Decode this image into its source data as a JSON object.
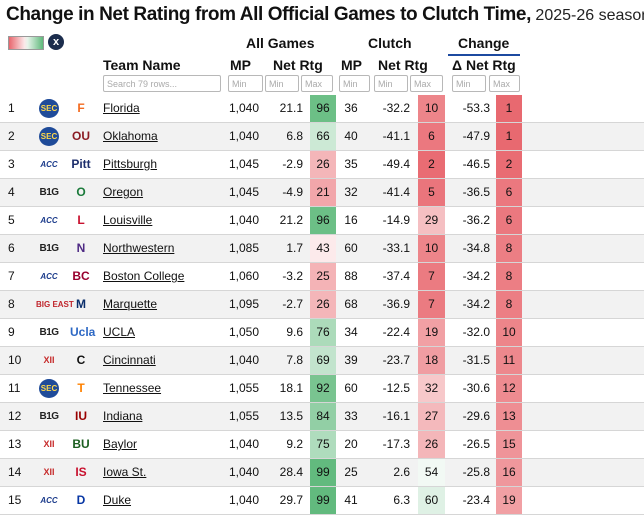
{
  "title": {
    "main": "Change in Net Rating from All Official Games to Clutch Time,",
    "sub": " 2025-26 season"
  },
  "colors": {
    "green_strong": "#5fb97b",
    "red_strong": "#e8666d",
    "header_underline": "#1c4aa0"
  },
  "headers": {
    "all_games": "All Games",
    "clutch": "Clutch",
    "change": "Change",
    "team_name": "Team Name",
    "mp": "MP",
    "net_rtg": "Net Rtg",
    "delta_net_rtg": "Δ Net Rtg"
  },
  "filters": {
    "team_search": "Search 79 rows...",
    "min": "Min",
    "max": "Max"
  },
  "icons": {
    "color_toggle": "heatmap-toggle-icon",
    "close": "close-icon",
    "close_glyph": "x"
  },
  "rows": [
    {
      "rank": "1",
      "conf": "SEC",
      "conf_style": "sec",
      "logo": "F",
      "logo_color": "#f36b21",
      "team": "Florida",
      "mp_all": "1,040",
      "net_all": "21.1",
      "shade_all": "96",
      "mp_clutch": "36",
      "net_clutch": "-32.2",
      "shade_clutch": "10",
      "delta": "-53.3",
      "shade_delta": "1"
    },
    {
      "rank": "2",
      "conf": "SEC",
      "conf_style": "sec",
      "logo": "OU",
      "logo_color": "#8b1c24",
      "team": "Oklahoma",
      "mp_all": "1,040",
      "net_all": "6.8",
      "shade_all": "66",
      "mp_clutch": "40",
      "net_clutch": "-41.1",
      "shade_clutch": "6",
      "delta": "-47.9",
      "shade_delta": "1"
    },
    {
      "rank": "3",
      "conf": "ACC",
      "conf_style": "acc",
      "logo": "Pitt",
      "logo_color": "#1c2d6b",
      "team": "Pittsburgh",
      "mp_all": "1,045",
      "net_all": "-2.9",
      "shade_all": "26",
      "mp_clutch": "35",
      "net_clutch": "-49.4",
      "shade_clutch": "2",
      "delta": "-46.5",
      "shade_delta": "2"
    },
    {
      "rank": "4",
      "conf": "B1G",
      "conf_style": "big",
      "logo": "O",
      "logo_color": "#1a7a3a",
      "team": "Oregon",
      "mp_all": "1,045",
      "net_all": "-4.9",
      "shade_all": "21",
      "mp_clutch": "32",
      "net_clutch": "-41.4",
      "shade_clutch": "5",
      "delta": "-36.5",
      "shade_delta": "6"
    },
    {
      "rank": "5",
      "conf": "ACC",
      "conf_style": "acc",
      "logo": "L",
      "logo_color": "#c8102e",
      "team": "Louisville",
      "mp_all": "1,040",
      "net_all": "21.2",
      "shade_all": "96",
      "mp_clutch": "16",
      "net_clutch": "-14.9",
      "shade_clutch": "29",
      "delta": "-36.2",
      "shade_delta": "6"
    },
    {
      "rank": "6",
      "conf": "B1G",
      "conf_style": "big",
      "logo": "N",
      "logo_color": "#4e2a84",
      "team": "Northwestern",
      "mp_all": "1,085",
      "net_all": "1.7",
      "shade_all": "43",
      "mp_clutch": "60",
      "net_clutch": "-33.1",
      "shade_clutch": "10",
      "delta": "-34.8",
      "shade_delta": "8"
    },
    {
      "rank": "7",
      "conf": "ACC",
      "conf_style": "acc",
      "logo": "BC",
      "logo_color": "#98002e",
      "team": "Boston College",
      "mp_all": "1,060",
      "net_all": "-3.2",
      "shade_all": "25",
      "mp_clutch": "88",
      "net_clutch": "-37.4",
      "shade_clutch": "7",
      "delta": "-34.2",
      "shade_delta": "8"
    },
    {
      "rank": "8",
      "conf": "BIG EAST",
      "conf_style": "be",
      "logo": "M",
      "logo_color": "#0a2e6b",
      "team": "Marquette",
      "mp_all": "1,095",
      "net_all": "-2.7",
      "shade_all": "26",
      "mp_clutch": "68",
      "net_clutch": "-36.9",
      "shade_clutch": "7",
      "delta": "-34.2",
      "shade_delta": "8"
    },
    {
      "rank": "9",
      "conf": "B1G",
      "conf_style": "big",
      "logo": "Ucla",
      "logo_color": "#2d68c4",
      "team": "UCLA",
      "mp_all": "1,050",
      "net_all": "9.6",
      "shade_all": "76",
      "mp_clutch": "34",
      "net_clutch": "-22.4",
      "shade_clutch": "19",
      "delta": "-32.0",
      "shade_delta": "10"
    },
    {
      "rank": "10",
      "conf": "XII",
      "conf_style": "b12",
      "logo": "C",
      "logo_color": "#111111",
      "team": "Cincinnati",
      "mp_all": "1,040",
      "net_all": "7.8",
      "shade_all": "69",
      "mp_clutch": "39",
      "net_clutch": "-23.7",
      "shade_clutch": "18",
      "delta": "-31.5",
      "shade_delta": "11"
    },
    {
      "rank": "11",
      "conf": "SEC",
      "conf_style": "sec",
      "logo": "T",
      "logo_color": "#ff8200",
      "team": "Tennessee",
      "mp_all": "1,055",
      "net_all": "18.1",
      "shade_all": "92",
      "mp_clutch": "60",
      "net_clutch": "-12.5",
      "shade_clutch": "32",
      "delta": "-30.6",
      "shade_delta": "12"
    },
    {
      "rank": "12",
      "conf": "B1G",
      "conf_style": "big",
      "logo": "IU",
      "logo_color": "#990000",
      "team": "Indiana",
      "mp_all": "1,055",
      "net_all": "13.5",
      "shade_all": "84",
      "mp_clutch": "33",
      "net_clutch": "-16.1",
      "shade_clutch": "27",
      "delta": "-29.6",
      "shade_delta": "13"
    },
    {
      "rank": "13",
      "conf": "XII",
      "conf_style": "b12",
      "logo": "BU",
      "logo_color": "#1b5e20",
      "team": "Baylor",
      "mp_all": "1,040",
      "net_all": "9.2",
      "shade_all": "75",
      "mp_clutch": "20",
      "net_clutch": "-17.3",
      "shade_clutch": "26",
      "delta": "-26.5",
      "shade_delta": "15"
    },
    {
      "rank": "14",
      "conf": "XII",
      "conf_style": "b12",
      "logo": "IS",
      "logo_color": "#c8102e",
      "team": "Iowa St.",
      "mp_all": "1,040",
      "net_all": "28.4",
      "shade_all": "99",
      "mp_clutch": "25",
      "net_clutch": "2.6",
      "shade_clutch": "54",
      "delta": "-25.8",
      "shade_delta": "16"
    },
    {
      "rank": "15",
      "conf": "ACC",
      "conf_style": "acc",
      "logo": "D",
      "logo_color": "#0736a4",
      "team": "Duke",
      "mp_all": "1,040",
      "net_all": "29.7",
      "shade_all": "99",
      "mp_clutch": "41",
      "net_clutch": "6.3",
      "shade_clutch": "60",
      "delta": "-23.4",
      "shade_delta": "19"
    }
  ]
}
